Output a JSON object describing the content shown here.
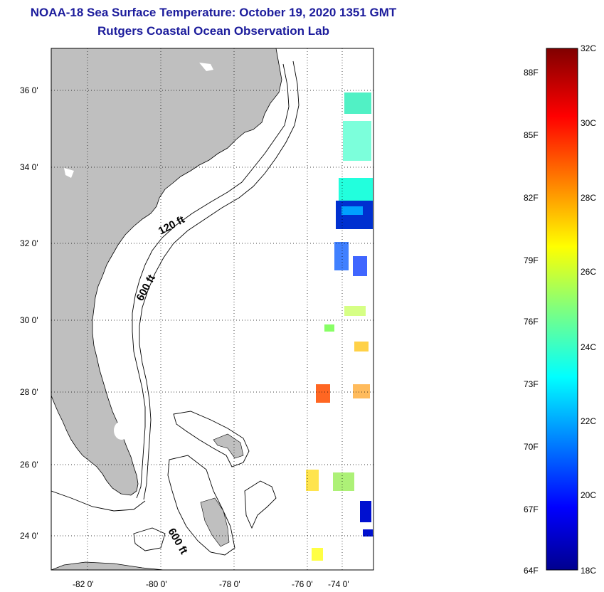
{
  "title": "NOAA-18 Sea Surface Temperature:  October 19, 2020 1351 GMT",
  "subtitle": "Rutgers Coastal Ocean Observation Lab",
  "map": {
    "lat_labels": [
      "36 0'",
      "34 0'",
      "32 0'",
      "30 0'",
      "28 0'",
      "26 0'",
      "24 0'"
    ],
    "lon_labels": [
      "-82 0'",
      "-80 0'",
      "-78 0'",
      "-76 0'",
      "-74 0'"
    ],
    "lat_range": [
      23,
      37.2
    ],
    "lon_range": [
      -83,
      -73
    ],
    "land_color": "#bfbfbf",
    "contour_labels": [
      "120 ft",
      "600 ft",
      "600 ft"
    ]
  },
  "colorbar": {
    "fahrenheit_labels": [
      "88F",
      "85F",
      "82F",
      "79F",
      "76F",
      "73F",
      "70F",
      "67F",
      "64F"
    ],
    "celsius_labels": [
      "32C",
      "30C",
      "28C",
      "26C",
      "24C",
      "22C",
      "20C",
      "18C"
    ],
    "range_c": [
      18,
      32
    ],
    "colormap": "jet"
  }
}
